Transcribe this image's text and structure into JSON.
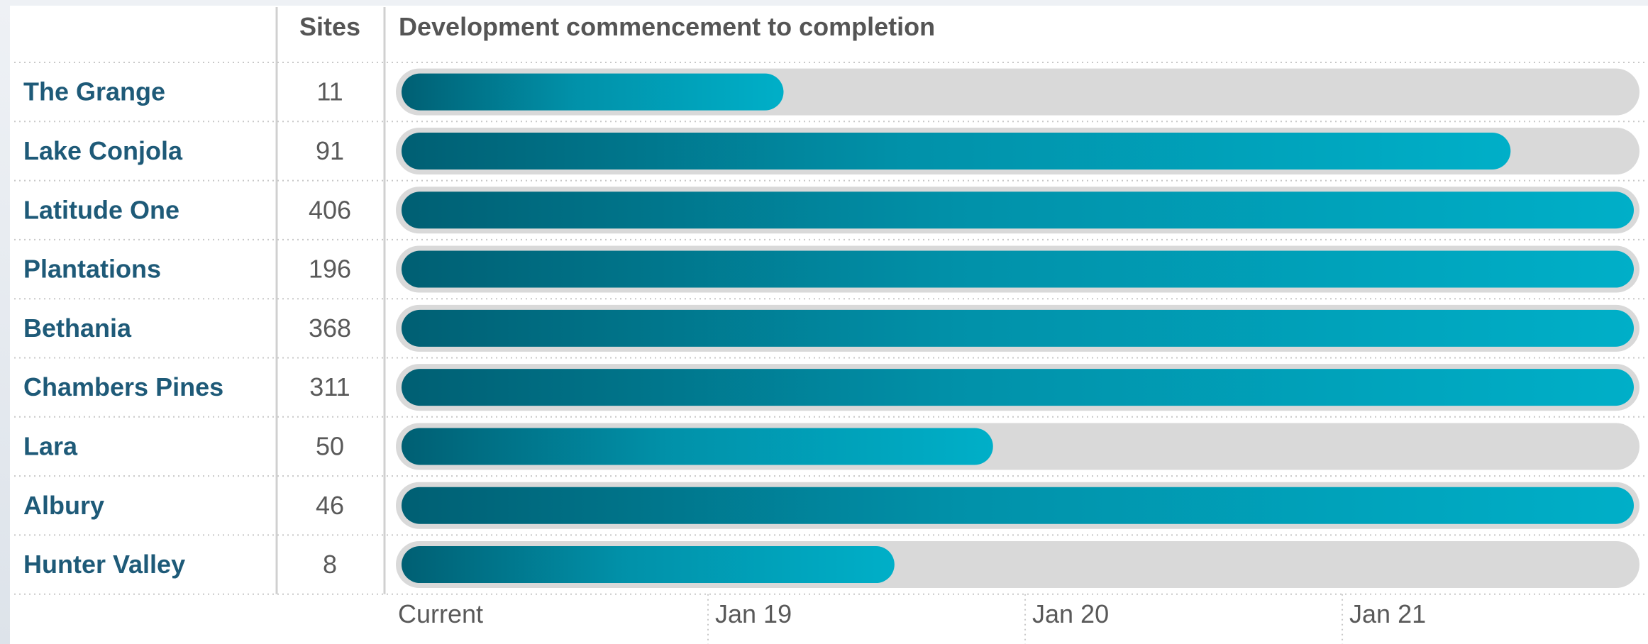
{
  "chart_data": {
    "type": "bar",
    "orientation": "horizontal",
    "title": "Development commencement to completion",
    "sites_header": "Sites",
    "categories": [
      "The Grange",
      "Lake Conjola",
      "Latitude One",
      "Plantations",
      "Bethania",
      "Chambers Pines",
      "Lara",
      "Albury",
      "Hunter Valley"
    ],
    "sites": [
      11,
      91,
      406,
      196,
      368,
      311,
      50,
      46,
      8
    ],
    "progress_fraction": [
      0.31,
      0.9,
      1.0,
      1.0,
      1.0,
      1.0,
      0.48,
      1.0,
      0.4
    ],
    "xaxis": {
      "tick_labels": [
        "Current",
        "Jan 19",
        "Jan 20",
        "Jan 21"
      ],
      "tick_positions": [
        0,
        0.255,
        0.51,
        0.765
      ]
    },
    "colors": {
      "bar_start": "#005f73",
      "bar_end": "#00afc8",
      "track": "#d9d9d9",
      "label": "#1e5a78",
      "text": "#595959"
    }
  }
}
